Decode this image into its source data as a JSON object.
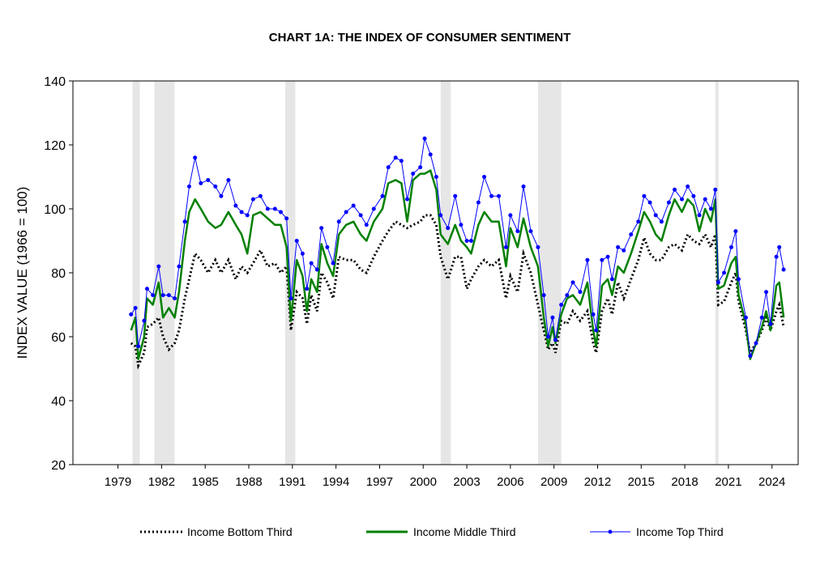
{
  "chart_data": {
    "type": "line",
    "title": "CHART 1A: THE INDEX OF CONSUMER SENTIMENT",
    "xlabel": "",
    "ylabel": "INDEX VALUE (1966 = 100)",
    "xlim": [
      1975.9,
      2025.8
    ],
    "ylim": [
      20,
      140
    ],
    "yticks": [
      20,
      40,
      60,
      80,
      100,
      120,
      140
    ],
    "xticks": [
      1979,
      1982,
      1985,
      1988,
      1991,
      1994,
      1997,
      2000,
      2003,
      2006,
      2009,
      2012,
      2015,
      2018,
      2021,
      2024
    ],
    "grid": false,
    "legend_position": "bottom",
    "recessions": [
      [
        1980.0,
        1980.5
      ],
      [
        1981.5,
        1982.9
      ],
      [
        1990.5,
        1991.2
      ],
      [
        2001.2,
        2001.9
      ],
      [
        2007.9,
        2009.5
      ],
      [
        2020.1,
        2020.3
      ]
    ],
    "x": [
      1979.9,
      1980.2,
      1980.4,
      1980.8,
      1981.0,
      1981.4,
      1981.8,
      1982.1,
      1982.5,
      1982.9,
      1983.2,
      1983.6,
      1983.9,
      1984.3,
      1984.7,
      1985.2,
      1985.7,
      1986.1,
      1986.6,
      1987.1,
      1987.5,
      1987.9,
      1988.3,
      1988.8,
      1989.3,
      1989.8,
      1990.2,
      1990.6,
      1990.9,
      1991.3,
      1991.7,
      1992.0,
      1992.3,
      1992.7,
      1993.0,
      1993.4,
      1993.8,
      1994.2,
      1994.7,
      1995.2,
      1995.7,
      1996.1,
      1996.6,
      1997.2,
      1997.6,
      1998.1,
      1998.5,
      1998.9,
      1999.3,
      1999.8,
      2000.1,
      2000.5,
      2000.9,
      2001.2,
      2001.7,
      2002.2,
      2002.6,
      2003.0,
      2003.3,
      2003.8,
      2004.2,
      2004.7,
      2005.2,
      2005.7,
      2006.0,
      2006.5,
      2006.9,
      2007.4,
      2007.9,
      2008.3,
      2008.6,
      2008.9,
      2009.1,
      2009.5,
      2009.9,
      2010.3,
      2010.8,
      2011.3,
      2011.7,
      2011.9,
      2012.3,
      2012.7,
      2013.0,
      2013.4,
      2013.8,
      2014.3,
      2014.8,
      2015.2,
      2015.6,
      2016.0,
      2016.4,
      2016.9,
      2017.3,
      2017.8,
      2018.2,
      2018.6,
      2019.0,
      2019.4,
      2019.8,
      2020.1,
      2020.3,
      2020.7,
      2021.2,
      2021.5,
      2021.7,
      2022.2,
      2022.5,
      2022.9,
      2023.3,
      2023.6,
      2023.9,
      2024.3,
      2024.5,
      2024.8
    ],
    "series": [
      {
        "name": "Income Bottom Third",
        "color": "#000000",
        "style": "dotted",
        "values": [
          58,
          57,
          51,
          55,
          63,
          64,
          66,
          60,
          56,
          58,
          62,
          72,
          78,
          86,
          84,
          80,
          84,
          80,
          84,
          78,
          82,
          80,
          83,
          87,
          82,
          83,
          80,
          82,
          62,
          74,
          72,
          64,
          73,
          68,
          80,
          77,
          72,
          85,
          84,
          84,
          81,
          80,
          85,
          90,
          93,
          96,
          95,
          94,
          95,
          96,
          98,
          98,
          95,
          85,
          78,
          85,
          85,
          75,
          78,
          82,
          84,
          82,
          84,
          72,
          79,
          74,
          86,
          80,
          70,
          62,
          56,
          58,
          55,
          65,
          64,
          68,
          65,
          68,
          58,
          55,
          68,
          72,
          67,
          77,
          72,
          78,
          84,
          91,
          86,
          84,
          84,
          88,
          89,
          87,
          92,
          90,
          89,
          92,
          88,
          92,
          70,
          71,
          77,
          80,
          71,
          62,
          55,
          58,
          62,
          66,
          62,
          68,
          70,
          63
        ]
      },
      {
        "name": "Income Middle Third",
        "color": "#008000",
        "style": "solid",
        "values": [
          62,
          66,
          53,
          60,
          72,
          70,
          77,
          66,
          69,
          66,
          74,
          90,
          99,
          103,
          100,
          96,
          94,
          95,
          99,
          95,
          92,
          86,
          98,
          99,
          97,
          95,
          95,
          88,
          65,
          84,
          79,
          68,
          78,
          74,
          89,
          83,
          79,
          92,
          95,
          96,
          92,
          90,
          96,
          100,
          108,
          109,
          108,
          96,
          109,
          111,
          111,
          112,
          106,
          92,
          89,
          95,
          90,
          88,
          86,
          95,
          99,
          96,
          96,
          82,
          94,
          88,
          97,
          88,
          82,
          66,
          57,
          63,
          58,
          67,
          72,
          73,
          70,
          77,
          62,
          57,
          76,
          78,
          73,
          82,
          80,
          86,
          93,
          99,
          96,
          92,
          90,
          98,
          103,
          99,
          103,
          101,
          93,
          100,
          96,
          103,
          75,
          76,
          83,
          85,
          73,
          64,
          53,
          58,
          63,
          68,
          62,
          76,
          77,
          66
        ]
      },
      {
        "name": "Income Top Third",
        "color": "#0000FF",
        "style": "line-markers",
        "values": [
          67,
          69,
          57,
          65,
          75,
          73,
          82,
          73,
          73,
          72,
          82,
          96,
          107,
          116,
          108,
          109,
          107,
          104,
          109,
          101,
          99,
          98,
          103,
          104,
          100,
          100,
          99,
          97,
          72,
          90,
          86,
          75,
          83,
          81,
          94,
          88,
          83,
          96,
          99,
          101,
          98,
          95,
          100,
          104,
          113,
          116,
          115,
          103,
          111,
          113,
          122,
          117,
          110,
          98,
          94,
          104,
          95,
          90,
          90,
          102,
          110,
          104,
          104,
          88,
          98,
          93,
          107,
          93,
          88,
          73,
          60,
          66,
          59,
          70,
          73,
          77,
          74,
          84,
          67,
          62,
          84,
          85,
          78,
          88,
          87,
          92,
          96,
          104,
          102,
          98,
          96,
          102,
          106,
          103,
          107,
          104,
          98,
          103,
          100,
          106,
          77,
          80,
          88,
          93,
          78,
          66,
          54,
          58,
          66,
          74,
          64,
          85,
          88,
          81
        ]
      }
    ]
  }
}
